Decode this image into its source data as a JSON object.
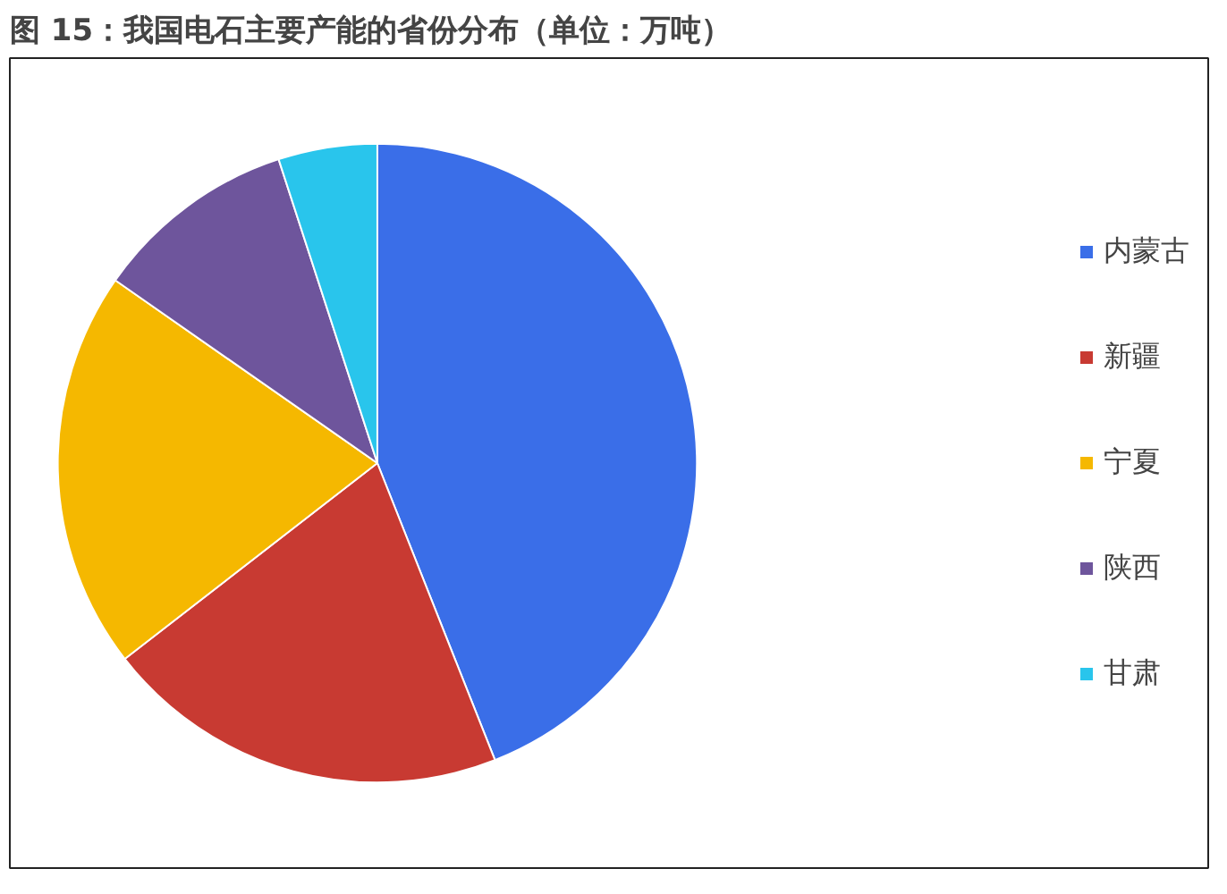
{
  "chart_data": {
    "type": "pie",
    "title": "图 15：我国电石主要产能的省份分布（单位：万吨）",
    "categories": [
      "内蒙古",
      "新疆",
      "宁夏",
      "陕西",
      "甘肃"
    ],
    "values": [
      44,
      20.5,
      20.2,
      10.3,
      5
    ],
    "colors": [
      "#3a6ee8",
      "#c83a32",
      "#f5b800",
      "#6e559c",
      "#29c5ec"
    ],
    "legend": "right"
  }
}
